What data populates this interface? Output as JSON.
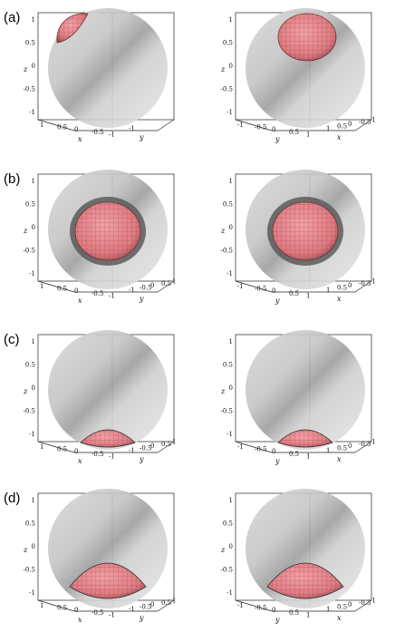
{
  "rows": [
    {
      "label": "(a)",
      "panels": [
        {
          "axes": {
            "x": "x",
            "y": "y",
            "z": "z"
          },
          "x_ticks": [
            "1",
            "0.5",
            "0",
            "-0.5",
            "-1"
          ],
          "y_ticks": [
            "-1"
          ],
          "z_ticks": [
            "1",
            "0.5",
            "0",
            "-0.5",
            "-1"
          ],
          "floor_left": "x",
          "cap": "a-left"
        },
        {
          "axes": {
            "x": "x",
            "y": "y",
            "z": "z"
          },
          "x_ticks": [
            "1",
            "0.5",
            "0",
            "-0.5",
            "-1"
          ],
          "y_ticks": [
            "-1",
            "-0.5",
            "0",
            "0.5",
            "1"
          ],
          "z_ticks": [
            "1",
            "0.5",
            "0",
            "-0.5",
            "-1"
          ],
          "floor_left": "y",
          "cap": "top"
        }
      ]
    },
    {
      "label": "(b)",
      "panels": [
        {
          "axes": {
            "x": "x",
            "y": "y",
            "z": "z"
          },
          "x_ticks": [
            "1",
            "0.5",
            "0",
            "-0.5",
            "-1"
          ],
          "y_ticks": [
            "-1",
            "-0.5",
            "0",
            "0.5",
            "1"
          ],
          "z_ticks": [
            "1",
            "0.5",
            "0",
            "-0.5",
            "-1"
          ],
          "floor_left": "x",
          "cap": "center"
        },
        {
          "axes": {
            "x": "x",
            "y": "y",
            "z": "z"
          },
          "x_ticks": [
            "1",
            "0.5",
            "0",
            "-0.5",
            "-1"
          ],
          "y_ticks": [
            "-1",
            "-0.5",
            "0",
            "0.5",
            "1"
          ],
          "z_ticks": [
            "1",
            "0.5",
            "0",
            "-0.5",
            "-1"
          ],
          "floor_left": "y",
          "cap": "center"
        }
      ]
    },
    {
      "label": "(c)",
      "panels": [
        {
          "axes": {
            "x": "x",
            "y": "y",
            "z": "z"
          },
          "x_ticks": [
            "1",
            "0.5",
            "0",
            "-0.5",
            "-1"
          ],
          "y_ticks": [
            "-1",
            "-0.5",
            "0",
            "0.5",
            "1"
          ],
          "z_ticks": [
            "1",
            "0.5",
            "0",
            "-0.5",
            "-1"
          ],
          "floor_left": "x",
          "cap": "bottom-small"
        },
        {
          "axes": {
            "x": "x",
            "y": "y",
            "z": "z"
          },
          "x_ticks": [
            "1",
            "0.5",
            "0",
            "-0.5",
            "-1"
          ],
          "y_ticks": [
            "-1",
            "-0.5",
            "0",
            "0.5",
            "1"
          ],
          "z_ticks": [
            "1",
            "0.5",
            "0",
            "-0.5",
            "-1"
          ],
          "floor_left": "y",
          "cap": "bottom-small"
        }
      ]
    },
    {
      "label": "(d)",
      "panels": [
        {
          "axes": {
            "x": "x",
            "y": "y",
            "z": "z"
          },
          "x_ticks": [
            "1",
            "0.5",
            "0",
            "-0.5",
            "-1"
          ],
          "y_ticks": [
            "-1",
            "-0.5",
            "0",
            "0.5",
            "1"
          ],
          "z_ticks": [
            "1",
            "0.5",
            "0",
            "-0.5",
            "-1"
          ],
          "floor_left": "x",
          "cap": "bottom-large"
        },
        {
          "axes": {
            "x": "x",
            "y": "y",
            "z": "z"
          },
          "x_ticks": [
            "1",
            "0.5",
            "0",
            "-0.5",
            "-1"
          ],
          "y_ticks": [
            "-1",
            "-0.5",
            "0",
            "0.5",
            "1"
          ],
          "z_ticks": [
            "1",
            "0.5",
            "0",
            "-0.5",
            "-1"
          ],
          "floor_left": "y",
          "cap": "bottom-large"
        }
      ]
    }
  ],
  "colors": {
    "sphere_light": "#e8e8e8",
    "sphere_dark": "#a8a8a8",
    "surface": "#e88a8f",
    "surface_mesh": "#9c3b44",
    "surface_shadow": "#6e6e6e",
    "frame": "#222222"
  }
}
